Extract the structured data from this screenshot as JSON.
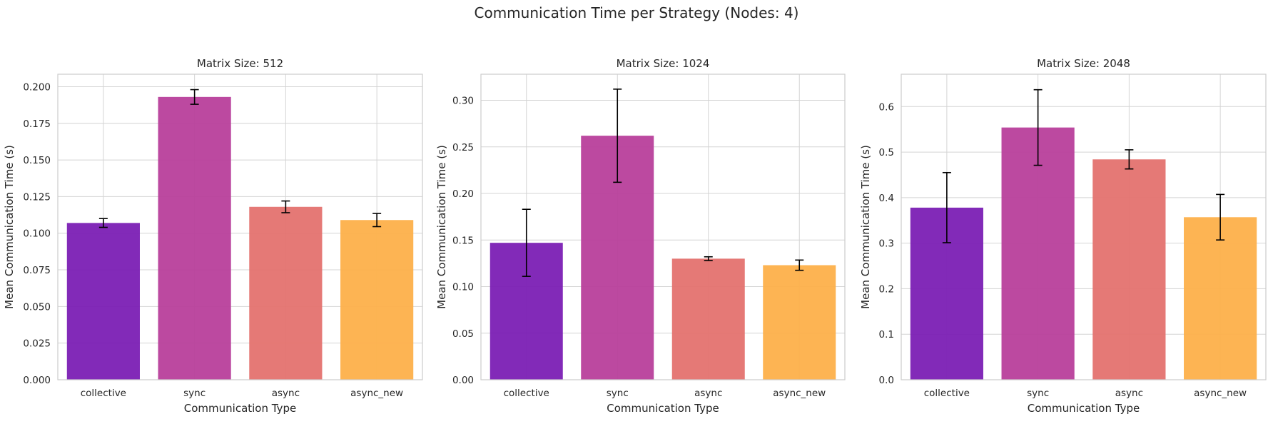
{
  "figure": {
    "title": "Communication Time per Strategy (Nodes: 4)"
  },
  "colors": {
    "bars": [
      "#7b1fb4",
      "#b83f9b",
      "#e4726f",
      "#fdb04a"
    ],
    "grid": "#d4d4d4",
    "frame": "#cccccc",
    "error_bar": "#000000"
  },
  "chart_data": [
    {
      "type": "bar",
      "title": "Matrix Size: 512",
      "xlabel": "Communication Type",
      "ylabel": "Mean Communication Time (s)",
      "categories": [
        "collective",
        "sync",
        "async",
        "async_new"
      ],
      "values": [
        0.107,
        0.193,
        0.118,
        0.109
      ],
      "errors": [
        0.003,
        0.005,
        0.004,
        0.0045
      ],
      "ylim": [
        0,
        0.2085
      ],
      "yticks": [
        0.0,
        0.025,
        0.05,
        0.075,
        0.1,
        0.125,
        0.15,
        0.175,
        0.2
      ],
      "ytick_labels": [
        "0.000",
        "0.025",
        "0.050",
        "0.075",
        "0.100",
        "0.125",
        "0.150",
        "0.175",
        "0.200"
      ],
      "grid": true
    },
    {
      "type": "bar",
      "title": "Matrix Size: 1024",
      "xlabel": "Communication Type",
      "ylabel": "Mean Communication Time (s)",
      "categories": [
        "collective",
        "sync",
        "async",
        "async_new"
      ],
      "values": [
        0.147,
        0.262,
        0.13,
        0.123
      ],
      "errors": [
        0.036,
        0.05,
        0.002,
        0.0055
      ],
      "ylim": [
        0,
        0.328
      ],
      "yticks": [
        0.0,
        0.05,
        0.1,
        0.15,
        0.2,
        0.25,
        0.3
      ],
      "ytick_labels": [
        "0.00",
        "0.05",
        "0.10",
        "0.15",
        "0.20",
        "0.25",
        "0.30"
      ],
      "grid": true
    },
    {
      "type": "bar",
      "title": "Matrix Size: 2048",
      "xlabel": "Communication Type",
      "ylabel": "Mean Communication Time (s)",
      "categories": [
        "collective",
        "sync",
        "async",
        "async_new"
      ],
      "values": [
        0.378,
        0.554,
        0.484,
        0.357
      ],
      "errors": [
        0.077,
        0.083,
        0.021,
        0.05
      ],
      "ylim": [
        0,
        0.671
      ],
      "yticks": [
        0.0,
        0.1,
        0.2,
        0.3,
        0.4,
        0.5,
        0.6
      ],
      "ytick_labels": [
        "0.0",
        "0.1",
        "0.2",
        "0.3",
        "0.4",
        "0.5",
        "0.6"
      ],
      "grid": true
    }
  ]
}
